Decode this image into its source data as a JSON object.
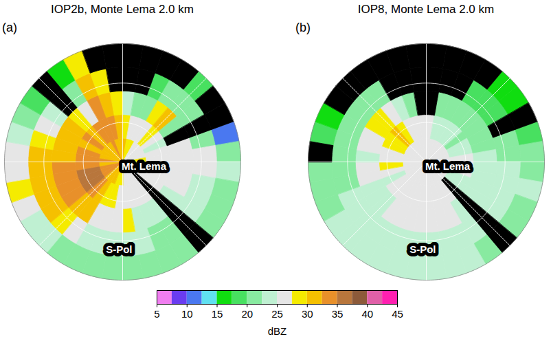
{
  "chart_data": {
    "type": "polar_heatmap",
    "panels": [
      {
        "label": "(a)",
        "title": "IOP2b, Monte Lema 2.0 km",
        "annotations": [
          "Mt. Lema",
          "S-Pol"
        ],
        "azimuth_edges": [
          0,
          10,
          20,
          30,
          40,
          50,
          60,
          70,
          80,
          90,
          100,
          110,
          120,
          130,
          140,
          150,
          160,
          170,
          180,
          190,
          200,
          210,
          220,
          230,
          240,
          250,
          260,
          270,
          280,
          290,
          300,
          310,
          320,
          330,
          340,
          350,
          360
        ],
        "range_edges": [
          0,
          0.2,
          0.4,
          0.6,
          0.8,
          1
        ],
        "cells": [
          [
            30,
            28,
            24,
            null,
            null
          ],
          [
            29,
            27,
            22,
            null,
            null
          ],
          [
            28,
            26,
            20,
            18,
            null
          ],
          [
            27,
            25,
            28,
            20,
            null
          ],
          [
            27,
            28,
            30,
            22,
            18
          ],
          [
            26,
            25,
            22,
            20,
            null
          ],
          [
            26,
            24,
            null,
            null,
            null
          ],
          [
            27,
            26,
            25,
            20,
            12
          ],
          [
            28,
            26,
            26,
            25,
            22
          ],
          [
            28,
            27,
            26,
            25,
            24
          ],
          [
            27,
            26,
            26,
            24,
            22
          ],
          [
            26,
            26,
            25,
            23,
            22
          ],
          [
            26,
            25,
            24,
            23,
            22
          ],
          [
            null,
            null,
            null,
            null,
            null
          ],
          [
            26,
            25,
            24,
            22,
            21
          ],
          [
            25,
            25,
            23,
            22,
            21
          ],
          [
            26,
            25,
            24,
            23,
            22
          ],
          [
            27,
            26,
            28,
            24,
            22
          ],
          [
            28,
            27,
            26,
            23,
            21
          ],
          [
            29,
            28,
            26,
            23,
            20
          ],
          [
            30,
            29,
            27,
            24,
            21
          ],
          [
            31,
            32,
            30,
            26,
            22
          ],
          [
            32,
            34,
            32,
            28,
            23
          ],
          [
            33,
            35,
            33,
            30,
            24
          ],
          [
            33,
            36,
            34,
            31,
            26
          ],
          [
            33,
            35,
            34,
            31,
            28
          ],
          [
            32,
            34,
            33,
            30,
            27
          ],
          [
            33,
            34,
            32,
            30,
            26
          ],
          [
            32,
            33,
            31,
            29,
            24
          ],
          [
            32,
            32,
            30,
            26,
            20
          ],
          [
            31,
            33,
            30,
            24,
            18
          ],
          [
            31,
            32,
            28,
            null,
            null
          ],
          [
            32,
            33,
            27,
            20,
            16
          ],
          [
            33,
            34,
            33,
            31,
            28
          ],
          [
            32,
            33,
            31,
            28,
            null
          ],
          [
            31,
            31,
            28,
            null,
            null
          ]
        ]
      },
      {
        "label": "(b)",
        "title": "IOP8, Monte Lema 2.0 km",
        "annotations": [
          "Mt. Lema",
          "S-Pol"
        ],
        "azimuth_edges": [
          0,
          10,
          20,
          30,
          40,
          50,
          60,
          70,
          80,
          90,
          100,
          110,
          120,
          130,
          140,
          150,
          160,
          170,
          180,
          190,
          200,
          210,
          220,
          230,
          240,
          250,
          260,
          270,
          280,
          290,
          300,
          310,
          320,
          330,
          340,
          350,
          360
        ],
        "range_edges": [
          0,
          0.2,
          0.4,
          0.6,
          0.8,
          1
        ],
        "cells": [
          [
            27,
            25,
            null,
            null,
            null
          ],
          [
            26,
            24,
            20,
            null,
            null
          ],
          [
            26,
            23,
            20,
            null,
            null
          ],
          [
            26,
            24,
            22,
            18,
            null
          ],
          [
            25,
            23,
            21,
            19,
            17
          ],
          [
            25,
            22,
            20,
            18,
            16
          ],
          [
            25,
            24,
            22,
            null,
            null
          ],
          [
            26,
            23,
            22,
            20,
            18
          ],
          [
            26,
            25,
            24,
            22,
            20
          ],
          [
            26,
            25,
            24,
            23,
            22
          ],
          [
            25,
            25,
            24,
            23,
            23
          ],
          [
            25,
            24,
            24,
            23,
            22
          ],
          [
            25,
            24,
            24,
            23,
            22
          ],
          [
            25,
            null,
            null,
            null,
            null
          ],
          [
            25,
            25,
            24,
            23,
            22
          ],
          [
            25,
            25,
            25,
            24,
            23
          ],
          [
            25,
            25,
            25,
            24,
            23
          ],
          [
            25,
            25,
            25,
            24,
            24
          ],
          [
            26,
            25,
            25,
            24,
            24
          ],
          [
            26,
            25,
            25,
            24,
            23
          ],
          [
            26,
            25,
            25,
            24,
            23
          ],
          [
            26,
            25,
            25,
            24,
            24
          ],
          [
            26,
            25,
            24,
            24,
            24
          ],
          [
            26,
            25,
            24,
            23,
            23
          ],
          [
            26,
            24,
            24,
            23,
            22
          ],
          [
            27,
            26,
            25,
            22,
            21
          ],
          [
            27,
            28,
            26,
            22,
            20
          ],
          [
            27,
            26,
            24,
            20,
            null
          ],
          [
            27,
            27,
            25,
            21,
            18
          ],
          [
            27,
            28,
            26,
            20,
            17
          ],
          [
            27,
            29,
            28,
            21,
            null
          ],
          [
            27,
            30,
            29,
            22,
            null
          ],
          [
            27,
            29,
            27,
            20,
            null
          ],
          [
            26,
            27,
            23,
            null,
            null
          ],
          [
            26,
            25,
            22,
            null,
            null
          ],
          [
            27,
            25,
            null,
            null,
            null
          ]
        ]
      }
    ],
    "colorbar": {
      "label": "dBZ",
      "range": [
        5,
        45
      ],
      "ticks": [
        5,
        10,
        15,
        20,
        25,
        30,
        35,
        40,
        45
      ],
      "bounds": [
        5,
        7.5,
        10,
        12.5,
        15,
        17.5,
        20,
        22.5,
        25,
        27.5,
        30,
        32.5,
        35,
        37.5,
        40,
        42.5,
        45
      ],
      "colors": [
        "#f07ef0",
        "#6a3cf0",
        "#4a78f0",
        "#60e0f0",
        "#10dd10",
        "#48e060",
        "#88eaa0",
        "#bff0d2",
        "#e6e6e6",
        "#f5eb00",
        "#f5c000",
        "#e8902a",
        "#b8763c",
        "#8c5a3a",
        "#e060a8",
        "#ff20b0"
      ],
      "no_data_color": "#000000"
    }
  }
}
